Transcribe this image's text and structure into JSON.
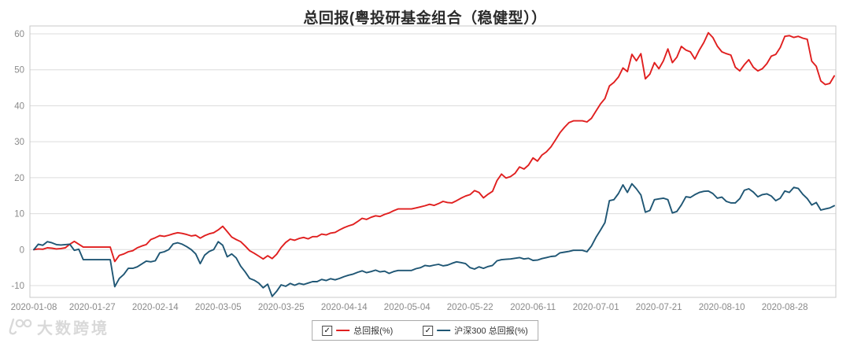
{
  "title": "总回报(粤投研基金组合（稳健型））",
  "watermark": {
    "text": "大数跨境",
    "logo": "100-logo"
  },
  "legend": {
    "items": [
      {
        "label": "总回报(%)",
        "color": "#E01F1F",
        "checked": true,
        "check_glyph": "✓"
      },
      {
        "label": "沪深300 总回报(%)",
        "color": "#1F5674",
        "checked": true,
        "check_glyph": "✓"
      }
    ]
  },
  "colors": {
    "grid": "#dcdcdc",
    "plot_border": "#c8c8c8",
    "tick_text": "#8a8a8a",
    "series_red": "#E01F1F",
    "series_blue": "#1F5674"
  },
  "chart_data": {
    "type": "line",
    "title": "总回报(粤投研基金组合（稳健型））",
    "xlabel": "",
    "ylabel": "",
    "grid": true,
    "legend_position": "bottom-center",
    "ylim": [
      -13.3,
      62.2
    ],
    "yticks": [
      -10,
      0,
      10,
      20,
      30,
      40,
      50,
      60
    ],
    "x_tick_labels": [
      "2020-01-08",
      "2020-01-27",
      "2020-02-14",
      "2020-03-05",
      "2020-03-25",
      "2020-04-14",
      "2020-05-04",
      "2020-05-22",
      "2020-06-11",
      "2020-07-01",
      "2020-07-21",
      "2020-08-10",
      "2020-08-28"
    ],
    "x_tick_indices": [
      0,
      13,
      27,
      41,
      55,
      69,
      83,
      97,
      111,
      125,
      139,
      153,
      167
    ],
    "x": [
      "2020-01-08",
      "2020-01-09",
      "2020-01-10",
      "2020-01-13",
      "2020-01-14",
      "2020-01-15",
      "2020-01-16",
      "2020-01-17",
      "2020-01-20",
      "2020-01-21",
      "2020-01-22",
      "2020-01-23",
      "2020-01-24",
      "2020-01-27",
      "2020-01-28",
      "2020-01-29",
      "2020-01-30",
      "2020-01-31",
      "2020-02-03",
      "2020-02-04",
      "2020-02-05",
      "2020-02-06",
      "2020-02-07",
      "2020-02-10",
      "2020-02-11",
      "2020-02-12",
      "2020-02-13",
      "2020-02-14",
      "2020-02-17",
      "2020-02-18",
      "2020-02-19",
      "2020-02-20",
      "2020-02-21",
      "2020-02-24",
      "2020-02-25",
      "2020-02-26",
      "2020-02-27",
      "2020-02-28",
      "2020-03-02",
      "2020-03-03",
      "2020-03-04",
      "2020-03-05",
      "2020-03-06",
      "2020-03-09",
      "2020-03-10",
      "2020-03-11",
      "2020-03-12",
      "2020-03-13",
      "2020-03-16",
      "2020-03-17",
      "2020-03-18",
      "2020-03-19",
      "2020-03-20",
      "2020-03-23",
      "2020-03-24",
      "2020-03-25",
      "2020-03-26",
      "2020-03-27",
      "2020-03-30",
      "2020-03-31",
      "2020-04-01",
      "2020-04-02",
      "2020-04-03",
      "2020-04-06",
      "2020-04-07",
      "2020-04-08",
      "2020-04-09",
      "2020-04-10",
      "2020-04-13",
      "2020-04-14",
      "2020-04-15",
      "2020-04-16",
      "2020-04-17",
      "2020-04-20",
      "2020-04-21",
      "2020-04-22",
      "2020-04-23",
      "2020-04-24",
      "2020-04-27",
      "2020-04-28",
      "2020-04-29",
      "2020-04-30",
      "2020-05-01",
      "2020-05-04",
      "2020-05-05",
      "2020-05-06",
      "2020-05-07",
      "2020-05-08",
      "2020-05-11",
      "2020-05-12",
      "2020-05-13",
      "2020-05-14",
      "2020-05-15",
      "2020-05-18",
      "2020-05-19",
      "2020-05-20",
      "2020-05-21",
      "2020-05-22",
      "2020-05-25",
      "2020-05-26",
      "2020-05-27",
      "2020-05-28",
      "2020-05-29",
      "2020-06-01",
      "2020-06-02",
      "2020-06-03",
      "2020-06-04",
      "2020-06-05",
      "2020-06-08",
      "2020-06-09",
      "2020-06-10",
      "2020-06-11",
      "2020-06-12",
      "2020-06-15",
      "2020-06-16",
      "2020-06-17",
      "2020-06-18",
      "2020-06-19",
      "2020-06-22",
      "2020-06-23",
      "2020-06-24",
      "2020-06-25",
      "2020-06-26",
      "2020-06-29",
      "2020-06-30",
      "2020-07-01",
      "2020-07-02",
      "2020-07-03",
      "2020-07-06",
      "2020-07-07",
      "2020-07-08",
      "2020-07-09",
      "2020-07-10",
      "2020-07-13",
      "2020-07-14",
      "2020-07-15",
      "2020-07-16",
      "2020-07-17",
      "2020-07-20",
      "2020-07-21",
      "2020-07-22",
      "2020-07-23",
      "2020-07-24",
      "2020-07-27",
      "2020-07-28",
      "2020-07-29",
      "2020-07-30",
      "2020-07-31",
      "2020-08-03",
      "2020-08-04",
      "2020-08-05",
      "2020-08-06",
      "2020-08-07",
      "2020-08-10",
      "2020-08-11",
      "2020-08-12",
      "2020-08-13",
      "2020-08-14",
      "2020-08-17",
      "2020-08-18",
      "2020-08-19",
      "2020-08-20",
      "2020-08-21",
      "2020-08-24",
      "2020-08-25",
      "2020-08-26",
      "2020-08-27",
      "2020-08-28",
      "2020-08-31",
      "2020-09-01",
      "2020-09-02",
      "2020-09-03",
      "2020-09-04",
      "2020-09-07",
      "2020-09-08",
      "2020-09-09",
      "2020-09-10",
      "2020-09-11",
      "2020-09-14"
    ],
    "series": [
      {
        "name": "总回报(%)",
        "color": "#E01F1F",
        "values": [
          0,
          0.2,
          0.1,
          0.5,
          0.4,
          0.2,
          0.3,
          0.5,
          1.5,
          2.3,
          1.5,
          0.7,
          0.7,
          0.7,
          0.7,
          0.7,
          0.7,
          0.7,
          -3.3,
          -1.6,
          -1.2,
          -0.6,
          -0.3,
          0.5,
          1.0,
          1.4,
          2.8,
          3.3,
          3.9,
          3.7,
          4.0,
          4.4,
          4.7,
          4.5,
          4.2,
          3.8,
          4.0,
          3.2,
          3.9,
          4.4,
          4.7,
          5.5,
          6.5,
          5.0,
          3.5,
          2.8,
          2.2,
          1.0,
          -0.3,
          -1.0,
          -1.8,
          -2.6,
          -1.7,
          -2.5,
          -1.3,
          0.6,
          2.0,
          2.9,
          2.6,
          3.1,
          3.4,
          3.0,
          3.6,
          3.6,
          4.3,
          4.1,
          4.6,
          4.8,
          5.5,
          6.1,
          6.6,
          7.0,
          7.8,
          8.7,
          8.4,
          9.0,
          9.4,
          9.2,
          9.8,
          10.2,
          10.8,
          11.3,
          11.3,
          11.3,
          11.3,
          11.6,
          11.9,
          12.2,
          12.6,
          12.3,
          12.8,
          13.4,
          13.1,
          13.0,
          13.6,
          14.3,
          14.9,
          15.3,
          16.4,
          15.9,
          14.4,
          15.4,
          16.2,
          19.2,
          21.0,
          19.9,
          20.3,
          21.2,
          23.0,
          22.4,
          23.5,
          25.5,
          24.6,
          26.3,
          27.2,
          28.6,
          30.5,
          32.5,
          34.0,
          35.3,
          35.8,
          35.8,
          35.8,
          35.5,
          36.5,
          38.5,
          40.5,
          42.0,
          45.5,
          46.5,
          48.0,
          50.5,
          49.5,
          54.3,
          52.5,
          54.5,
          47.5,
          48.8,
          52.0,
          50.3,
          52.5,
          55.8,
          52.0,
          53.5,
          56.5,
          55.5,
          55.0,
          53.0,
          55.5,
          57.6,
          60.3,
          59.0,
          56.6,
          55.0,
          54.5,
          54.1,
          50.7,
          49.7,
          51.4,
          52.8,
          50.7,
          49.7,
          50.3,
          51.7,
          53.8,
          54.3,
          56.2,
          59.3,
          59.5,
          59.0,
          59.3,
          58.8,
          58.5,
          52.4,
          51.0,
          46.9,
          45.9,
          46.2,
          48.3
        ]
      },
      {
        "name": "沪深300 总回报(%)",
        "color": "#1F5674",
        "values": [
          0,
          1.5,
          1.2,
          2.2,
          1.9,
          1.4,
          1.3,
          1.4,
          1.5,
          -0.2,
          0.1,
          -2.8,
          -2.8,
          -2.8,
          -2.8,
          -2.8,
          -2.8,
          -2.8,
          -10.3,
          -8.0,
          -6.9,
          -5.2,
          -5.2,
          -4.8,
          -4.0,
          -3.2,
          -3.4,
          -3.1,
          -0.9,
          -0.6,
          0.0,
          1.6,
          1.9,
          1.5,
          0.8,
          0.0,
          -1.2,
          -3.9,
          -1.5,
          -0.5,
          0.0,
          2.2,
          1.2,
          -2.0,
          -1.2,
          -2.3,
          -4.6,
          -6.2,
          -8.0,
          -8.5,
          -9.3,
          -10.6,
          -9.6,
          -13.0,
          -11.6,
          -9.8,
          -10.2,
          -9.4,
          -9.9,
          -9.4,
          -9.7,
          -9.3,
          -8.9,
          -8.9,
          -8.3,
          -8.6,
          -8.1,
          -8.4,
          -8.0,
          -7.5,
          -7.1,
          -6.8,
          -6.3,
          -5.9,
          -6.4,
          -6.1,
          -5.7,
          -6.2,
          -6.0,
          -6.6,
          -6.1,
          -5.8,
          -5.8,
          -5.8,
          -5.8,
          -5.3,
          -5.0,
          -4.4,
          -4.6,
          -4.3,
          -4.1,
          -4.5,
          -4.3,
          -3.8,
          -3.4,
          -3.6,
          -3.9,
          -5.0,
          -5.4,
          -4.8,
          -5.2,
          -4.7,
          -4.4,
          -3.1,
          -2.8,
          -2.7,
          -2.6,
          -2.4,
          -2.2,
          -2.6,
          -2.4,
          -3.0,
          -2.9,
          -2.5,
          -2.2,
          -1.9,
          -1.8,
          -0.9,
          -0.7,
          -0.5,
          -0.2,
          -0.2,
          -0.2,
          -0.6,
          1.0,
          3.4,
          5.4,
          7.5,
          13.6,
          13.9,
          15.6,
          18.0,
          15.9,
          18.3,
          16.9,
          15.2,
          10.4,
          10.9,
          13.9,
          14.1,
          14.3,
          13.9,
          10.2,
          10.6,
          12.4,
          14.7,
          14.5,
          15.3,
          15.9,
          16.2,
          16.3,
          15.6,
          14.3,
          14.6,
          13.4,
          13.0,
          13.0,
          14.2,
          16.5,
          16.9,
          16.0,
          14.7,
          15.3,
          15.5,
          14.9,
          13.6,
          14.3,
          16.3,
          15.9,
          17.3,
          17.0,
          15.4,
          14.2,
          12.4,
          13.1,
          11.0,
          11.3,
          11.6,
          12.2
        ]
      }
    ]
  }
}
